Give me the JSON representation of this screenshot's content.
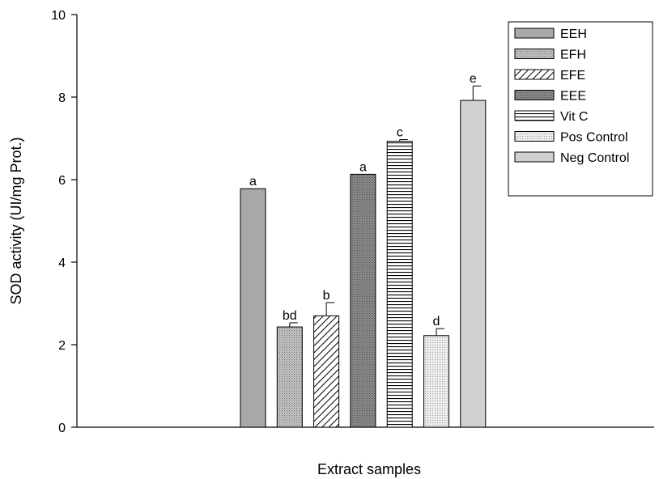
{
  "chart_data": {
    "type": "bar",
    "title": "",
    "xlabel": "Extract samples",
    "ylabel": "SOD activity (UI/mg Prot.)",
    "ylim": [
      0,
      10
    ],
    "yticks": [
      "0",
      "2",
      "4",
      "6",
      "8",
      "10"
    ],
    "grid": false,
    "legend_position": "top-right",
    "series": [
      {
        "name": "EEH",
        "value": 5.78,
        "error": 0.0,
        "letter": "a",
        "fill": "#a8a8a8",
        "pattern": "solid"
      },
      {
        "name": "EFH",
        "value": 2.43,
        "error": 0.1,
        "letter": "bd",
        "fill": "#b8b8b8",
        "pattern": "dots-fine"
      },
      {
        "name": "EFE",
        "value": 2.7,
        "error": 0.32,
        "letter": "b",
        "fill": "#ffffff",
        "pattern": "diagonal-hatch"
      },
      {
        "name": "EEE",
        "value": 6.13,
        "error": 0.0,
        "letter": "a",
        "fill": "#888888",
        "pattern": "dots-dense"
      },
      {
        "name": "Vit C",
        "value": 6.93,
        "error": 0.04,
        "letter": "c",
        "fill": "#ffffff",
        "pattern": "horizontal-lines"
      },
      {
        "name": "Pos Control",
        "value": 2.22,
        "error": 0.17,
        "letter": "d",
        "fill": "#e4e4e4",
        "pattern": "dots-light"
      },
      {
        "name": "Neg Control",
        "value": 7.92,
        "error": 0.35,
        "letter": "e",
        "fill": "#d0d0d0",
        "pattern": "solid"
      }
    ]
  }
}
